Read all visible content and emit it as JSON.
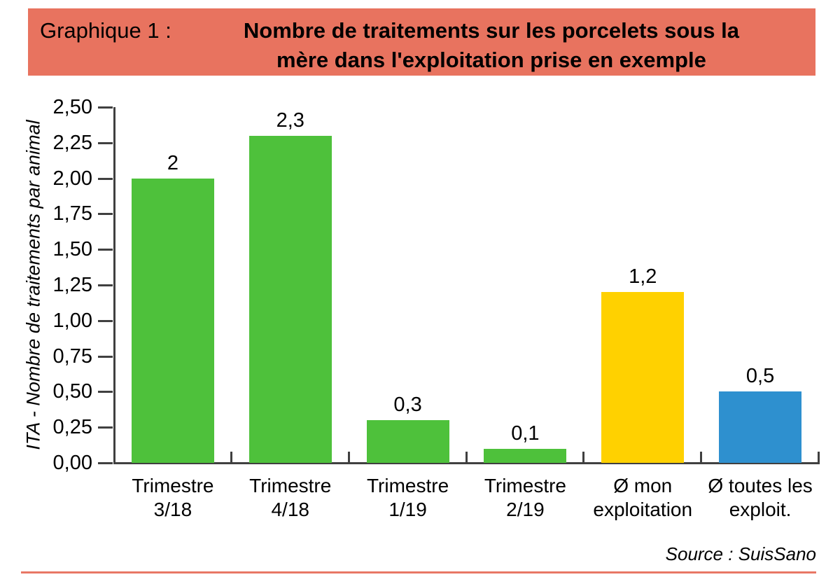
{
  "header": {
    "label": "Graphique 1 :",
    "title_line1": "Nombre de traitements sur les porcelets sous la",
    "title_line2": "mère dans l'exploitation prise en exemple",
    "background": "#E8735F"
  },
  "chart_data": {
    "type": "bar",
    "title": "Nombre de traitements sur les porcelets sous la mère dans l'exploitation prise en exemple",
    "ylabel": "ITA - Nombre de traitements par animal",
    "xlabel": "",
    "ylim": [
      0,
      2.5
    ],
    "ytick_step": 0.25,
    "ytick_labels": [
      "0,00",
      "0,25",
      "0,50",
      "0,75",
      "1,00",
      "1,25",
      "1,50",
      "1,75",
      "2,00",
      "2,25",
      "2,50"
    ],
    "categories": [
      {
        "line1": "Trimestre",
        "line2": "3/18"
      },
      {
        "line1": "Trimestre",
        "line2": "4/18"
      },
      {
        "line1": "Trimestre",
        "line2": "1/19"
      },
      {
        "line1": "Trimestre",
        "line2": "2/19"
      },
      {
        "line1": "Ø mon",
        "line2": "exploitation"
      },
      {
        "line1": "Ø toutes les",
        "line2": "exploit."
      }
    ],
    "values": [
      2,
      2.3,
      0.3,
      0.1,
      1.2,
      0.5
    ],
    "value_labels": [
      "2",
      "2,3",
      "0,3",
      "0,1",
      "1,2",
      "0,5"
    ],
    "bar_colors": [
      "#4EC13B",
      "#4EC13B",
      "#4EC13B",
      "#4EC13B",
      "#FFD100",
      "#2E90CF"
    ],
    "grid": false,
    "legend": null
  },
  "source": {
    "text": "Source : SuisSano"
  },
  "colors": {
    "banner_background": "#E8735F",
    "bottom_rule": "#E87765",
    "axis": "#404040",
    "green_bar": "#4EC13B",
    "yellow_bar": "#FFD100",
    "blue_bar": "#2E90CF"
  }
}
